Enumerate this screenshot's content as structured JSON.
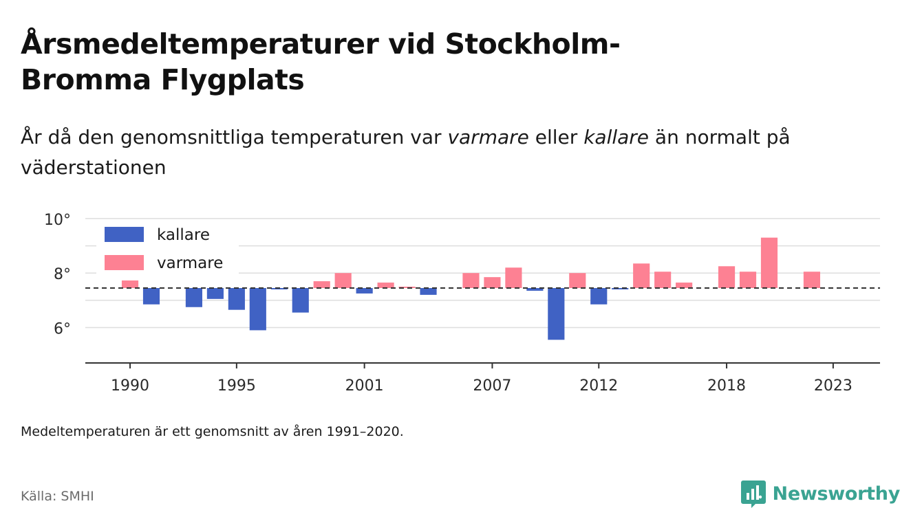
{
  "title": "Årsmedeltemperaturer vid Stockholm-Bromma Flygplats",
  "subtitle": {
    "part1": "År då den genomsnittliga temperaturen var ",
    "warm_word": "varmare",
    "part2": " eller ",
    "cold_word": "kallare",
    "part3": " än normalt på väderstationen"
  },
  "note": "Medeltemperaturen är ett genomsnitt av åren 1991–2020.",
  "source": "Källa: SMHI",
  "brand": {
    "name": "Newsworthy",
    "icon": "newsworthy-logo-icon",
    "color": "#3aa392"
  },
  "chart_data": {
    "type": "bar",
    "baseline": 7.45,
    "ylim": [
      4.7,
      10.2
    ],
    "y_ticks": [
      {
        "value": 6,
        "label": "6°"
      },
      {
        "value": 8,
        "label": "8°"
      },
      {
        "value": 10,
        "label": "10°"
      }
    ],
    "x_range": [
      1987.9,
      2025.2
    ],
    "x_ticks": [
      {
        "value": 1990,
        "label": "1990"
      },
      {
        "value": 1995,
        "label": "1995"
      },
      {
        "value": 2001,
        "label": "2001"
      },
      {
        "value": 2007,
        "label": "2007"
      },
      {
        "value": 2012,
        "label": "2012"
      },
      {
        "value": 2018,
        "label": "2018"
      },
      {
        "value": 2023,
        "label": "2023"
      }
    ],
    "colors": {
      "kallare": "#4062c4",
      "varmare": "#fd8193"
    },
    "legend": [
      {
        "key": "kallare",
        "label": "kallare"
      },
      {
        "key": "varmare",
        "label": "varmare"
      }
    ],
    "legend_position": "top-left",
    "grid": true,
    "data": [
      {
        "year": 1990,
        "value": 7.75
      },
      {
        "year": 1991,
        "value": 6.85
      },
      {
        "year": 1993,
        "value": 6.75
      },
      {
        "year": 1994,
        "value": 7.05
      },
      {
        "year": 1995,
        "value": 6.65
      },
      {
        "year": 1996,
        "value": 5.9
      },
      {
        "year": 1997,
        "value": 7.4
      },
      {
        "year": 1998,
        "value": 6.55
      },
      {
        "year": 1999,
        "value": 7.7
      },
      {
        "year": 2000,
        "value": 8.0
      },
      {
        "year": 2001,
        "value": 7.25
      },
      {
        "year": 2002,
        "value": 7.65
      },
      {
        "year": 2003,
        "value": 7.5
      },
      {
        "year": 2004,
        "value": 7.2
      },
      {
        "year": 2006,
        "value": 8.0
      },
      {
        "year": 2007,
        "value": 7.85
      },
      {
        "year": 2008,
        "value": 8.2
      },
      {
        "year": 2009,
        "value": 7.35
      },
      {
        "year": 2010,
        "value": 5.55
      },
      {
        "year": 2011,
        "value": 8.0
      },
      {
        "year": 2012,
        "value": 6.85
      },
      {
        "year": 2013,
        "value": 7.4
      },
      {
        "year": 2014,
        "value": 8.35
      },
      {
        "year": 2015,
        "value": 8.05
      },
      {
        "year": 2016,
        "value": 7.65
      },
      {
        "year": 2018,
        "value": 8.25
      },
      {
        "year": 2019,
        "value": 8.05
      },
      {
        "year": 2020,
        "value": 9.3
      },
      {
        "year": 2022,
        "value": 8.05
      }
    ]
  }
}
